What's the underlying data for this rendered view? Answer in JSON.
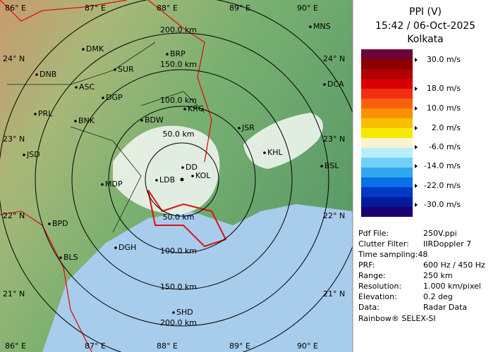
{
  "header": {
    "title": "PPI (V)",
    "time": "15:42 / 06-Oct-2025",
    "station": "Kolkata"
  },
  "map": {
    "lon_labels_top": [
      "86° E",
      "87° E",
      "88° E",
      "89° E",
      "90° E"
    ],
    "lon_labels_bottom": [
      "86° E",
      "87° E",
      "88° E",
      "89° E",
      "90° E"
    ],
    "lat_labels_left": [
      "24° N",
      "23° N",
      "22° N",
      "21° N"
    ],
    "lat_labels_right": [
      "24° N",
      "23° N",
      "22° N",
      "21° N"
    ],
    "range_labels": [
      "200.0 km",
      "150.0 km",
      "100.0 km",
      "50.0 km",
      "50.0 km",
      "100.0 km",
      "150.0 km",
      "200.0 km"
    ],
    "cities": [
      "MNS",
      "DMK",
      "BRP",
      "DNB",
      "SUR",
      "ASC",
      "DGP",
      "DCA",
      "KRG",
      "PRL",
      "BNK",
      "BDW",
      "JSR",
      "KHL",
      "JSD",
      "DD",
      "KOL",
      "LDB",
      "BSL",
      "MDP",
      "BPD",
      "DGH",
      "BLS",
      "SHD"
    ]
  },
  "colorbar": {
    "labels": [
      "30.0 m/s",
      "18.0 m/s",
      "10.0 m/s",
      "2.0 m/s",
      "-6.0 m/s",
      "-14.0 m/s",
      "-22.0 m/s",
      "-30.0 m/s"
    ],
    "colors": [
      "#6e0038",
      "#8c0000",
      "#b00000",
      "#d80000",
      "#f03010",
      "#f86010",
      "#f89000",
      "#f8c000",
      "#f8e800",
      "#f8f4d0",
      "#b8eef8",
      "#70d0f8",
      "#30a8f0",
      "#0870e8",
      "#0038c8",
      "#001c98",
      "#1a0070"
    ]
  },
  "info": {
    "rows": [
      [
        "Pdf File:",
        "250V.ppi"
      ],
      [
        "Clutter Filter:",
        "IIRDoppler 7"
      ],
      [
        "Time sampling:48"
      ],
      [
        "PRF:",
        "600 Hz / 450 Hz"
      ],
      [
        "Range:",
        "250 km"
      ],
      [
        "Resolution:",
        "1.000 km/pixel"
      ],
      [
        "Elevation:",
        "0.2 deg"
      ],
      [
        "Data:",
        "Radar Data"
      ]
    ]
  },
  "footer": "Rainbow® SELEX-SI"
}
